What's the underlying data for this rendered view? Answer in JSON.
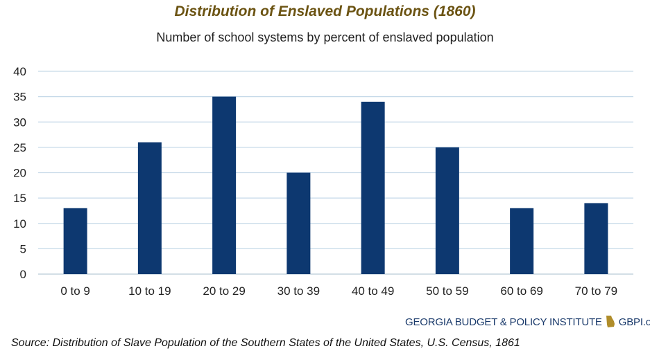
{
  "chart_data": {
    "type": "bar",
    "title": "Distribution of Enslaved Populations (1860)",
    "subtitle": "Number of school systems by percent of enslaved population",
    "categories": [
      "0 to 9",
      "10 to 19",
      "20 to 29",
      "30 to 39",
      "40 to 49",
      "50 to 59",
      "60 to 69",
      "70 to 79"
    ],
    "values": [
      13,
      26,
      35,
      20,
      34,
      25,
      13,
      14
    ],
    "ylim": [
      0,
      40
    ],
    "yticks": [
      0,
      5,
      10,
      15,
      20,
      25,
      30,
      35,
      40
    ],
    "grid": true,
    "bar_color": "#0d3870",
    "grid_color": "#c6d9e8"
  },
  "branding": {
    "org": "GEORGIA BUDGET & POLICY INSTITUTE",
    "url": "GBPI.org",
    "logo_icon": "georgia-state-icon",
    "logo_color": "#b08d2a"
  },
  "source": "Source: Distribution of Slave Population of the Southern States of the United States, U.S. Census, 1861"
}
